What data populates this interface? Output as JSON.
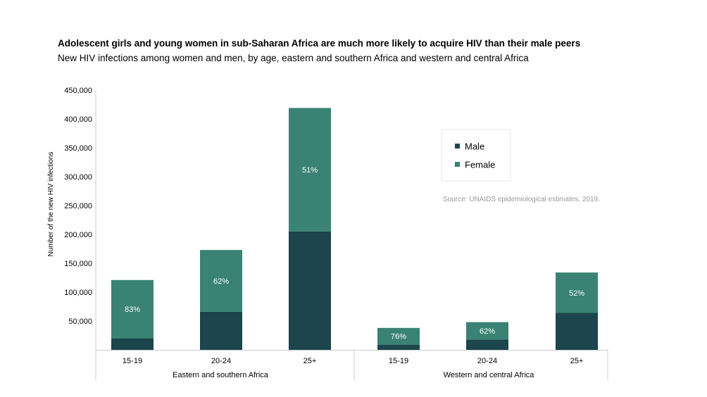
{
  "colors": {
    "male": "#1c454d",
    "female": "#3a8374",
    "axis": "#cccccc",
    "source_text": "#999999"
  },
  "chart_data": {
    "type": "bar",
    "stacked": true,
    "title": "Adolescent girls and young women in sub-Saharan Africa are much more likely to acquire HIV than their male peers",
    "subtitle": "New HIV infections among women and men, by age, eastern and southern Africa and western and central Africa",
    "ylabel": "Number of the new HIV infections",
    "ylim": [
      0,
      450000
    ],
    "yticks": [
      50000,
      100000,
      150000,
      200000,
      250000,
      300000,
      350000,
      400000,
      450000
    ],
    "ytick_labels": [
      "50,000",
      "100,000",
      "150,000",
      "200,000",
      "250,000",
      "300,000",
      "350,000",
      "400,000",
      "450,000"
    ],
    "categories": [
      "15-19",
      "20-24",
      "25+",
      "15-19",
      "20-24",
      "25+"
    ],
    "groups": [
      {
        "label": "Eastern and southern Africa",
        "categories": [
          0,
          1,
          2
        ]
      },
      {
        "label": "Western and central Africa",
        "categories": [
          3,
          4,
          5
        ]
      }
    ],
    "series": [
      {
        "name": "Male",
        "values": [
          20000,
          66000,
          205000,
          9000,
          18000,
          64000
        ]
      },
      {
        "name": "Female",
        "values": [
          101000,
          107000,
          214000,
          29000,
          30000,
          70000
        ]
      }
    ],
    "data_labels": [
      "83%",
      "62%",
      "51%",
      "76%",
      "62%",
      "52%"
    ],
    "legend_position": "right",
    "source": "Source: UNAIDS epidemiological estimates, 2019."
  }
}
